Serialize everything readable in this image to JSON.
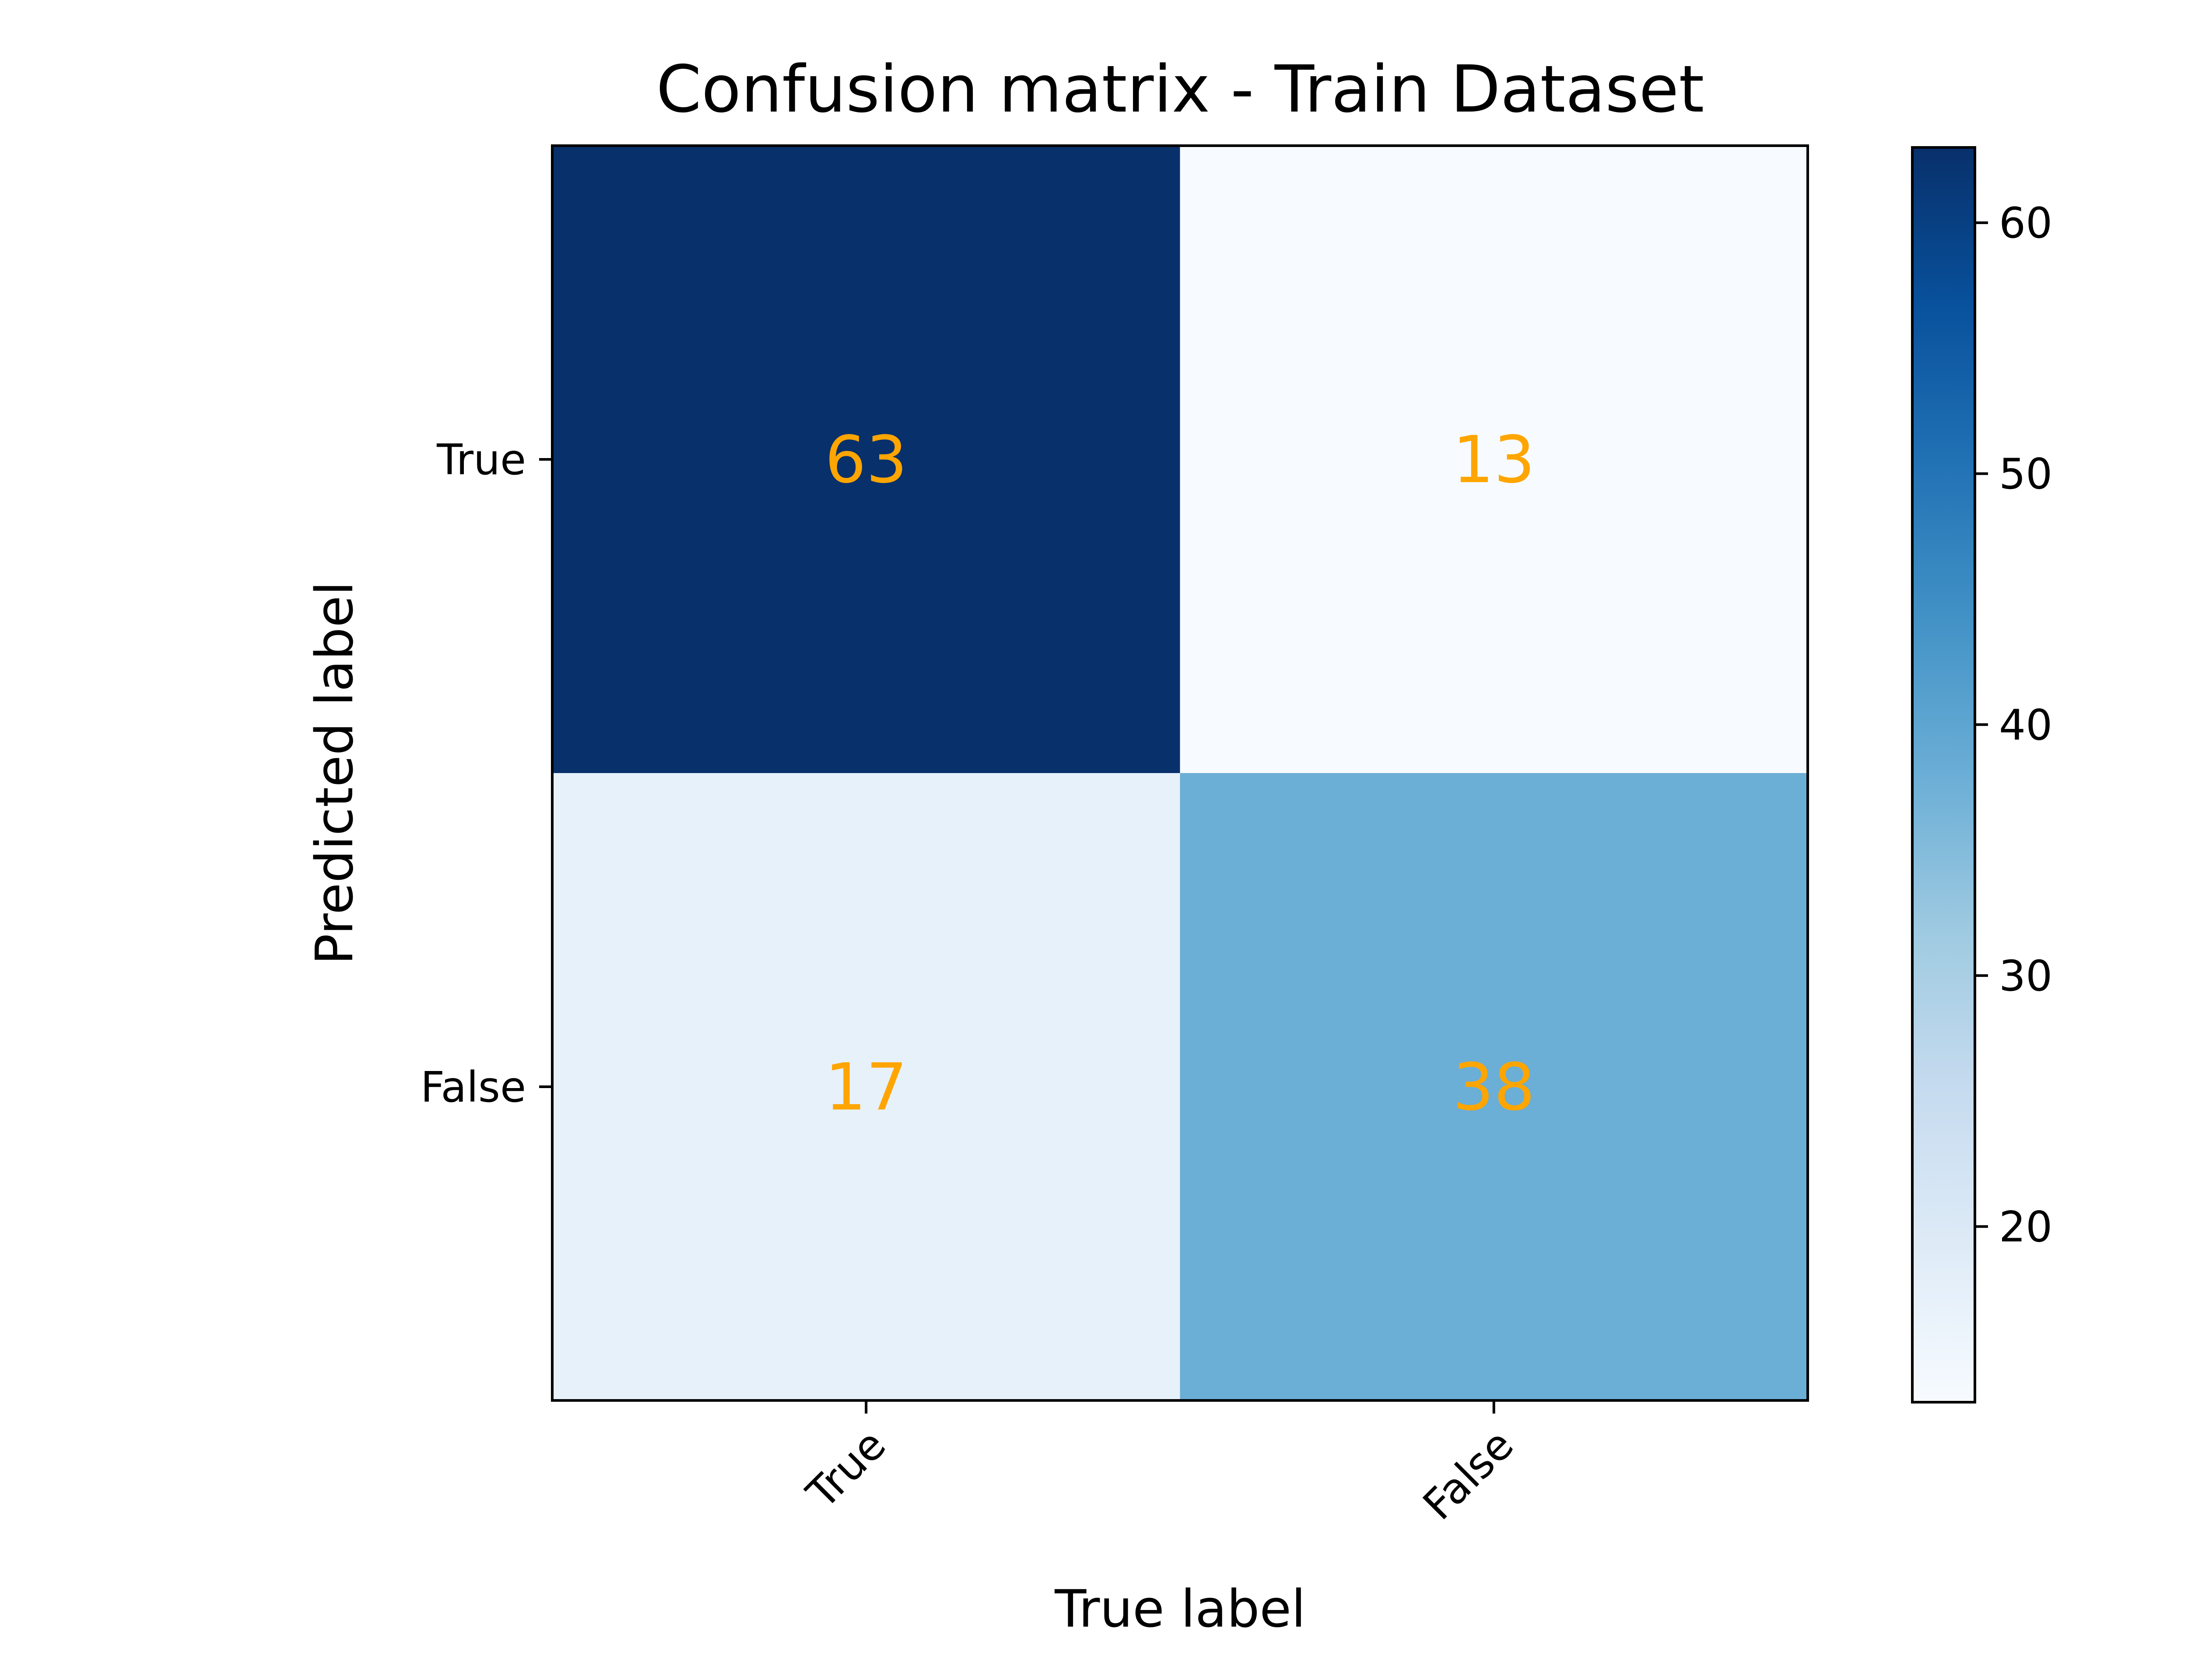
{
  "chart_data": {
    "type": "heatmap",
    "title": "Confusion matrix - Train Dataset",
    "xlabel": "True label",
    "ylabel": "Predicted label",
    "x_categories": [
      "True",
      "False"
    ],
    "y_categories": [
      "True",
      "False"
    ],
    "values": [
      [
        63,
        13
      ],
      [
        17,
        38
      ]
    ],
    "colormap": "Blues",
    "value_label_color": "#FFA500",
    "colorbar": {
      "range": [
        13,
        63
      ],
      "ticks": [
        20,
        30,
        40,
        50,
        60
      ],
      "tick_labels": [
        "20",
        "30",
        "40",
        "50",
        "60"
      ]
    },
    "grid": false,
    "x_tick_rotation": 45
  }
}
